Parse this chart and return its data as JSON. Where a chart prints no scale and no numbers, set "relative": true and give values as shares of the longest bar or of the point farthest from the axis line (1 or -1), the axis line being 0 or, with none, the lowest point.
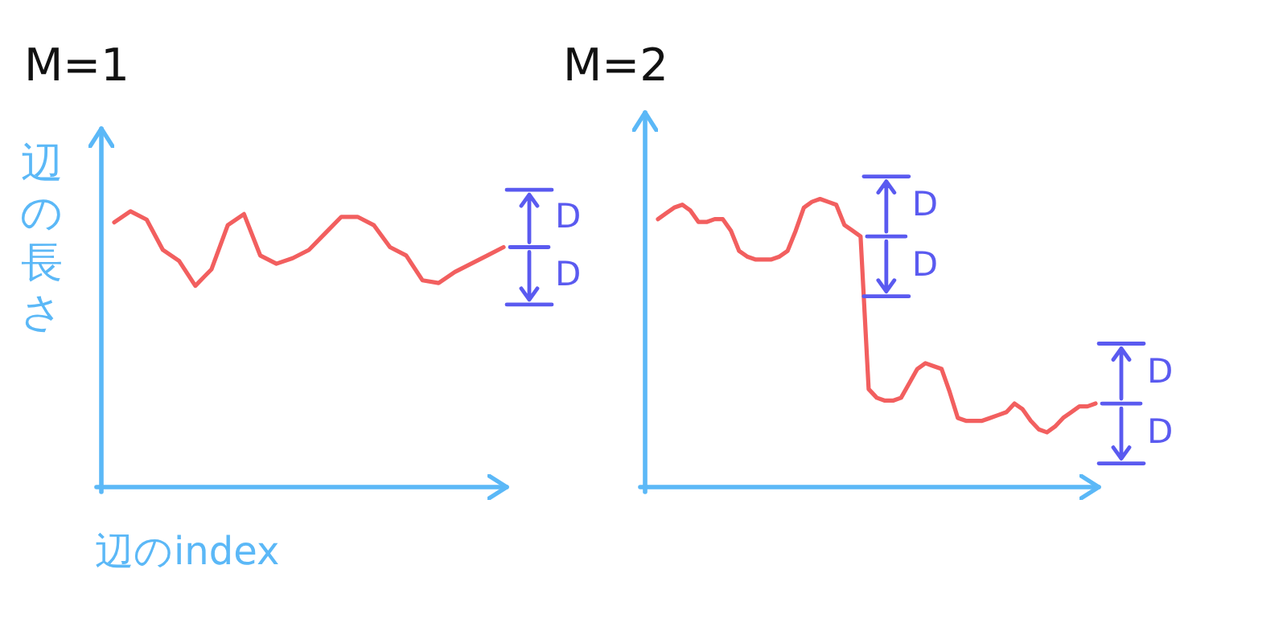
{
  "chart_data": [
    {
      "type": "line",
      "title": "M=1",
      "xlabel": "辺のindex",
      "ylabel": "辺の長さ",
      "relative": true,
      "tick_labels": false,
      "categories": [
        null,
        null,
        null,
        null,
        null,
        null,
        null,
        null,
        null,
        null,
        null,
        null,
        null,
        null,
        null,
        null,
        null,
        null,
        null,
        null,
        null,
        null,
        null,
        null,
        null
      ],
      "series": [
        {
          "color": "#f25f5f",
          "values": [
            0.96,
            1.0,
            0.97,
            0.86,
            0.82,
            0.73,
            0.79,
            0.95,
            0.99,
            0.84,
            0.81,
            0.83,
            0.86,
            0.92,
            0.98,
            0.98,
            0.95,
            0.87,
            0.84,
            0.75,
            0.74,
            0.78,
            0.81,
            0.84,
            0.87
          ]
        }
      ],
      "annotations": [
        "D",
        "D"
      ]
    },
    {
      "type": "line",
      "title": "M=2",
      "relative": true,
      "tick_labels": false,
      "categories": [
        null,
        null,
        null,
        null,
        null,
        null,
        null,
        null,
        null,
        null,
        null,
        null,
        null,
        null,
        null,
        null,
        null,
        null,
        null,
        null,
        null,
        null,
        null,
        null,
        null,
        null,
        null,
        null,
        null,
        null,
        null,
        null,
        null,
        null,
        null,
        null,
        null,
        null,
        null,
        null,
        null,
        null,
        null,
        null,
        null,
        null,
        null,
        null,
        null,
        null,
        null,
        null,
        null,
        null,
        null
      ],
      "series": [
        {
          "color": "#f25f5f",
          "values": [
            0.93,
            0.95,
            0.97,
            0.98,
            0.96,
            0.92,
            0.92,
            0.93,
            0.93,
            0.89,
            0.82,
            0.8,
            0.79,
            0.79,
            0.79,
            0.8,
            0.82,
            0.89,
            0.97,
            0.99,
            1.0,
            0.99,
            0.98,
            0.91,
            0.89,
            0.87,
            0.34,
            0.31,
            0.3,
            0.3,
            0.31,
            0.36,
            0.41,
            0.43,
            0.42,
            0.41,
            0.33,
            0.24,
            0.23,
            0.23,
            0.23,
            0.24,
            0.25,
            0.26,
            0.29,
            0.27,
            0.23,
            0.2,
            0.19,
            0.21,
            0.24,
            0.26,
            0.28,
            0.28,
            0.29
          ]
        }
      ],
      "annotations": [
        "D",
        "D",
        "D",
        "D"
      ]
    }
  ]
}
